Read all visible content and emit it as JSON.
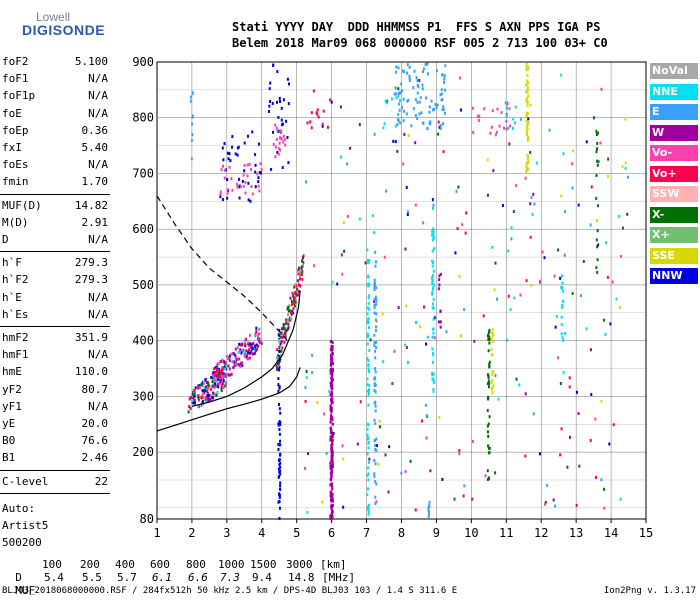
{
  "logo": {
    "line1": "Lowell",
    "line2": "DIGISONDE"
  },
  "header": {
    "labels": "Stati YYYY DAY  DDD HHMMSS P1  FFS S AXN PPS IGA PS",
    "values": "Belem 2018 Mar09 068 000000 RSF 005 2 713 100 03+ C0"
  },
  "params": [
    [
      {
        "name": "foF2",
        "value": "5.100"
      },
      {
        "name": "foF1",
        "value": "N/A"
      },
      {
        "name": "foF1p",
        "value": "N/A"
      },
      {
        "name": "foE",
        "value": "N/A"
      },
      {
        "name": "foEp",
        "value": "0.36"
      },
      {
        "name": "fxI",
        "value": "5.40"
      },
      {
        "name": "foEs",
        "value": "N/A"
      },
      {
        "name": "fmin",
        "value": "1.70"
      }
    ],
    [
      {
        "name": "MUF(D)",
        "value": "14.82"
      },
      {
        "name": "M(D)",
        "value": "2.91"
      },
      {
        "name": "D",
        "value": "N/A"
      }
    ],
    [
      {
        "name": "h`F",
        "value": "279.3"
      },
      {
        "name": "h`F2",
        "value": "279.3"
      },
      {
        "name": "h`E",
        "value": "N/A"
      },
      {
        "name": "h`Es",
        "value": "N/A"
      }
    ],
    [
      {
        "name": "hmF2",
        "value": "351.9"
      },
      {
        "name": "hmF1",
        "value": "N/A"
      },
      {
        "name": "hmE",
        "value": "110.0"
      },
      {
        "name": "yF2",
        "value": "80.7"
      },
      {
        "name": "yF1",
        "value": "N/A"
      },
      {
        "name": "yE",
        "value": "20.0"
      },
      {
        "name": "B0",
        "value": "76.6"
      },
      {
        "name": "B1",
        "value": "2.46"
      }
    ],
    [
      {
        "name": "C-level",
        "value": "22"
      }
    ]
  ],
  "auto": [
    "Auto:",
    "Artist5",
    "500200"
  ],
  "legend": [
    {
      "label": "NoVal",
      "color": "#a8a8a8"
    },
    {
      "label": "NNE",
      "color": "#00e0f0"
    },
    {
      "label": "E",
      "color": "#3aa0ff"
    },
    {
      "label": "W",
      "color": "#a000a0"
    },
    {
      "label": "Vo-",
      "color": "#ff40b0"
    },
    {
      "label": "Vo+",
      "color": "#ff0050"
    },
    {
      "label": "SSW",
      "color": "#ffb0b0"
    },
    {
      "label": "X-",
      "color": "#007000"
    },
    {
      "label": "X+",
      "color": "#70c070"
    },
    {
      "label": "SSE",
      "color": "#d8d800"
    },
    {
      "label": "NNW",
      "color": "#0000e0"
    }
  ],
  "mufTable": {
    "dLabel": "D",
    "mufLabel": "MUF",
    "d": [
      "100",
      "200",
      "400",
      "600",
      "800",
      "1000",
      "1500",
      "3000",
      "[km]"
    ],
    "muf": [
      "5.4",
      "5.5",
      "5.7",
      "6.1",
      "6.6",
      "7.3",
      "9.4",
      "14.8",
      "[MHz]"
    ]
  },
  "footer": {
    "left": "BLJ03_2018068000000.RSF / 284fx512h 50 kHz 2.5 km / DPS-4D BLJ03 103 / 1.4 S 311.6 E",
    "right": "Ion2Png v. 1.3.17"
  },
  "chart_data": {
    "type": "scatter",
    "xlim": [
      1,
      15
    ],
    "ylim": [
      80,
      900
    ],
    "xticks": [
      1,
      2,
      3,
      4,
      5,
      6,
      7,
      8,
      9,
      10,
      11,
      12,
      13,
      14,
      15
    ],
    "yticks": [
      80,
      200,
      300,
      400,
      500,
      600,
      700,
      800,
      900
    ],
    "grid": true,
    "xlabel": "",
    "ylabel": "",
    "curves": [
      {
        "style": "solid",
        "points": [
          [
            1,
            238
          ],
          [
            1.5,
            248
          ],
          [
            2,
            258
          ],
          [
            2.5,
            268
          ],
          [
            3,
            278
          ],
          [
            3.5,
            286
          ],
          [
            4,
            295
          ],
          [
            4.5,
            306
          ],
          [
            4.8,
            318
          ],
          [
            5.0,
            335
          ],
          [
            5.1,
            352
          ]
        ]
      },
      {
        "style": "solid",
        "points": [
          [
            2,
            282
          ],
          [
            2.5,
            290
          ],
          [
            3,
            300
          ],
          [
            3.5,
            315
          ],
          [
            4,
            335
          ],
          [
            4.3,
            350
          ],
          [
            4.6,
            375
          ],
          [
            4.9,
            420
          ],
          [
            5.05,
            460
          ],
          [
            5.1,
            490
          ]
        ]
      },
      {
        "style": "dashed",
        "points": [
          [
            1,
            660
          ],
          [
            1.5,
            610
          ],
          [
            2,
            565
          ],
          [
            2.5,
            530
          ],
          [
            3,
            505
          ],
          [
            3.5,
            480
          ],
          [
            4,
            450
          ],
          [
            4.3,
            430
          ],
          [
            4.6,
            410
          ],
          [
            4.8,
            395
          ]
        ]
      }
    ],
    "clusters": [
      {
        "color": "#0000e0",
        "x": [
          2.8,
          4.0
        ],
        "y": [
          650,
          780
        ],
        "n": 40
      },
      {
        "color": "#ff40b0",
        "x": [
          2.8,
          4.0
        ],
        "y": [
          660,
          720
        ],
        "n": 30
      },
      {
        "color": "#0000e0",
        "x": [
          4.2,
          4.8
        ],
        "y": [
          700,
          900
        ],
        "n": 30
      },
      {
        "color": "#ff40b0",
        "x": [
          4.3,
          4.7
        ],
        "y": [
          730,
          790
        ],
        "n": 20
      },
      {
        "color": "#3aa0ff",
        "x": [
          7.8,
          9.3
        ],
        "y": [
          780,
          900
        ],
        "n": 90
      },
      {
        "color": "#ff40b0",
        "x": [
          10.0,
          11.2
        ],
        "y": [
          770,
          830
        ],
        "n": 20
      },
      {
        "color": "#00e0f0",
        "x": [
          11.0,
          11.3
        ],
        "y": [
          780,
          830
        ],
        "n": 10
      },
      {
        "color": "#ff0050",
        "x": [
          5.3,
          6.0
        ],
        "y": [
          780,
          840
        ],
        "n": 12
      },
      {
        "color": "#00e0f0",
        "x": [
          7.4,
          8.0
        ],
        "y": [
          780,
          840
        ],
        "n": 10
      }
    ],
    "columns": [
      {
        "x": 5.99,
        "color": "#a000a0",
        "y": [
          80,
          400
        ],
        "n": 110
      },
      {
        "x": 6.01,
        "color": "#a000a0",
        "y": [
          80,
          400
        ],
        "n": 90
      },
      {
        "x": 7.05,
        "color": "#00e0f0",
        "y": [
          80,
          570
        ],
        "n": 70
      },
      {
        "x": 7.25,
        "color": "#3aa0ff",
        "y": [
          100,
          560
        ],
        "n": 60
      },
      {
        "x": 8.9,
        "color": "#00e0f0",
        "y": [
          300,
          640
        ],
        "n": 50
      },
      {
        "x": 8.8,
        "color": "#3aa0ff",
        "y": [
          82,
          110
        ],
        "n": 8
      },
      {
        "x": 10.5,
        "color": "#007000",
        "y": [
          150,
          420
        ],
        "n": 40
      },
      {
        "x": 10.6,
        "color": "#d8d800",
        "y": [
          300,
          420
        ],
        "n": 20
      },
      {
        "x": 11.6,
        "color": "#d8d800",
        "y": [
          700,
          900
        ],
        "n": 50
      },
      {
        "x": 12.6,
        "color": "#00e0f0",
        "y": [
          400,
          520
        ],
        "n": 15
      },
      {
        "x": 9.1,
        "color": "#a000a0",
        "y": [
          420,
          520
        ],
        "n": 10
      },
      {
        "x": 13.6,
        "color": "#007000",
        "y": [
          500,
          780
        ],
        "n": 18
      },
      {
        "x": 4.5,
        "color": "#0000e0",
        "y": [
          80,
          420
        ],
        "n": 60
      },
      {
        "x": 2.0,
        "color": "#3aa0ff",
        "y": [
          700,
          860
        ],
        "n": 10
      }
    ],
    "traces": [
      {
        "colors": [
          "#0000e0",
          "#a000a0",
          "#ff40b0",
          "#007000",
          "#00e0f0",
          "#ff0050"
        ],
        "x": [
          1.9,
          3.0
        ],
        "y": [
          275,
          330
        ],
        "n": 140
      },
      {
        "colors": [
          "#0000e0",
          "#a000a0",
          "#ff40b0",
          "#3aa0ff",
          "#ff0050"
        ],
        "x": [
          2.6,
          4.0
        ],
        "y": [
          320,
          400
        ],
        "n": 160
      },
      {
        "colors": [
          "#007000",
          "#70c070",
          "#ff0050",
          "#a000a0"
        ],
        "x": [
          4.4,
          5.2
        ],
        "y": [
          350,
          530
        ],
        "n": 120
      }
    ],
    "scatter_random": {
      "colors": [
        "#0000e0",
        "#a000a0",
        "#3aa0ff",
        "#00e0f0",
        "#ff0050",
        "#007000",
        "#d8d800",
        "#ff40b0"
      ],
      "x": [
        5.2,
        14.5
      ],
      "y": [
        90,
        880
      ],
      "n": 260
    }
  }
}
